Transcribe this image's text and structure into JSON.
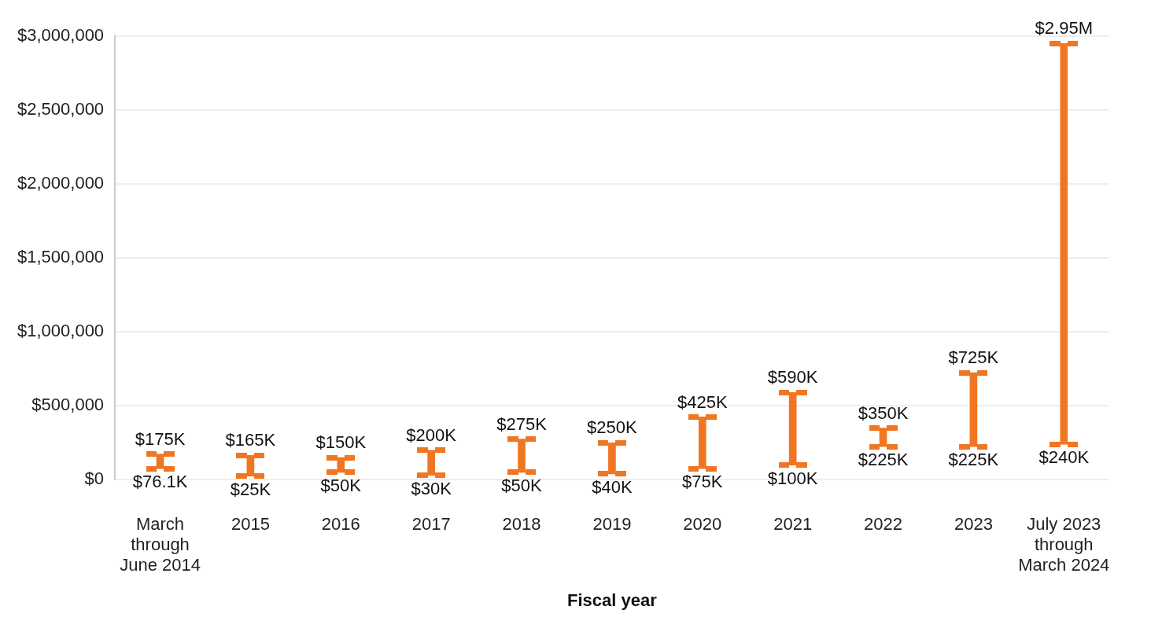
{
  "chart_data": {
    "type": "bar",
    "xlabel": "Fiscal year",
    "categories": [
      "March\nthrough\nJune 2014",
      "2015",
      "2016",
      "2017",
      "2018",
      "2019",
      "2020",
      "2021",
      "2022",
      "2023",
      "July 2023\nthrough\nMarch 2024"
    ],
    "base": [
      76100,
      25000,
      50000,
      30000,
      50000,
      40000,
      75000,
      100000,
      225000,
      225000,
      240000
    ],
    "values": [
      98900,
      140000,
      100000,
      170000,
      225000,
      210000,
      350000,
      490000,
      125000,
      500000,
      2710000
    ],
    "color": "#f07622",
    "ylim": [
      0,
      3000000
    ],
    "yticks": [
      {
        "value": 0,
        "label": "$0"
      },
      {
        "value": 500000,
        "label": "$500,000"
      },
      {
        "value": 1000000,
        "label": "$1,000,000"
      },
      {
        "value": 1500000,
        "label": "$1,500,000"
      },
      {
        "value": 2000000,
        "label": "$2,000,000"
      },
      {
        "value": 2500000,
        "label": "$2,500,000"
      },
      {
        "value": 3000000,
        "label": "$3,000,000"
      }
    ],
    "grid": "y",
    "legend": false,
    "annotations": [
      {
        "text": "$175K",
        "x": "March\nthrough\nJune 2014",
        "y": 175000
      },
      {
        "text": "$76.1K",
        "x": "March\nthrough\nJune 2014",
        "y": 76100
      },
      {
        "text": "$165K",
        "x": "2015",
        "y": 165000
      },
      {
        "text": "$25K",
        "x": "2015",
        "y": 25000
      },
      {
        "text": "$150K",
        "x": "2016",
        "y": 150000
      },
      {
        "text": "$50K",
        "x": "2016",
        "y": 50000
      },
      {
        "text": "$200K",
        "x": "2017",
        "y": 200000
      },
      {
        "text": "$30K",
        "x": "2017",
        "y": 30000
      },
      {
        "text": "$275K",
        "x": "2018",
        "y": 275000
      },
      {
        "text": "$50K",
        "x": "2018",
        "y": 50000
      },
      {
        "text": "$250K",
        "x": "2019",
        "y": 250000
      },
      {
        "text": "$40K",
        "x": "2019",
        "y": 40000
      },
      {
        "text": "$425K",
        "x": "2020",
        "y": 425000
      },
      {
        "text": "$75K",
        "x": "2020",
        "y": 75000
      },
      {
        "text": "$590K",
        "x": "2021",
        "y": 590000
      },
      {
        "text": "$100K",
        "x": "2021",
        "y": 100000
      },
      {
        "text": "$350K",
        "x": "2022",
        "y": 350000
      },
      {
        "text": "$225K",
        "x": "2022",
        "y": 225000
      },
      {
        "text": "$725K",
        "x": "2023",
        "y": 725000
      },
      {
        "text": "$225K",
        "x": "2023",
        "y": 225000
      },
      {
        "text": "$2.95M",
        "x": "July 2023\nthrough\nMarch 2024",
        "y": 2950000
      },
      {
        "text": "$240K",
        "x": "July 2023\nthrough\nMarch 2024",
        "y": 240000
      }
    ]
  }
}
